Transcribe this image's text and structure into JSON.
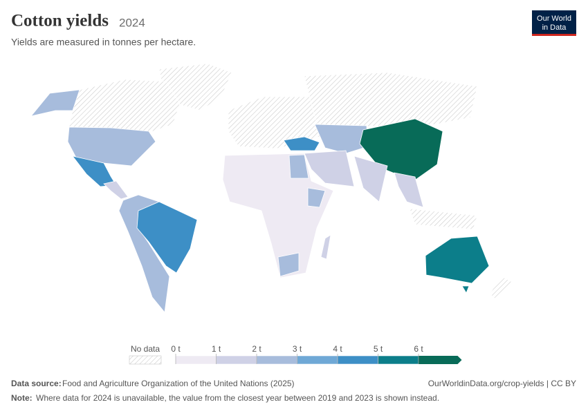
{
  "header": {
    "title": "Cotton yields",
    "year": "2024",
    "subtitle": "Yields are measured in tonnes per hectare.",
    "logo_line1": "Our World",
    "logo_line2": "in Data"
  },
  "legend": {
    "no_data_label": "No data",
    "ticks": [
      {
        "value": 0,
        "label": "0 t"
      },
      {
        "value": 1,
        "label": "1 t"
      },
      {
        "value": 2,
        "label": "2 t"
      },
      {
        "value": 3,
        "label": "3 t"
      },
      {
        "value": 4,
        "label": "4 t"
      },
      {
        "value": 5,
        "label": "5 t"
      },
      {
        "value": 6,
        "label": "6 t"
      }
    ],
    "colors": [
      "#eeeaf3",
      "#cfd1e6",
      "#a7bcdc",
      "#6fa8d6",
      "#3d8fc6",
      "#0c7e8a",
      "#086b58"
    ]
  },
  "footer": {
    "source_label": "Data source:",
    "source_text": "Food and Agriculture Organization of the United Nations (2025)",
    "url": "OurWorldinData.org/crop-yields | CC BY",
    "note_label": "Note:",
    "note_text": "Where data for 2024 is unavailable, the value from the closest year between 2019 and 2023 is shown instead."
  }
}
